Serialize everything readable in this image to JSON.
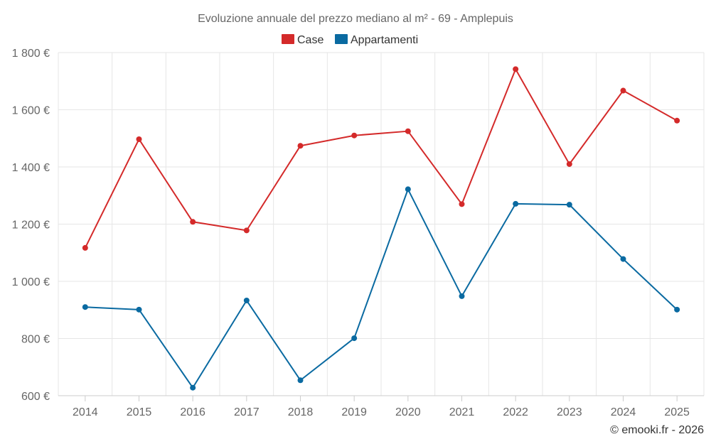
{
  "chart_data": {
    "type": "line",
    "title": "Evoluzione annuale del prezzo mediano al m² - 69 - Amplepuis",
    "categories": [
      "2014",
      "2015",
      "2016",
      "2017",
      "2018",
      "2019",
      "2020",
      "2021",
      "2022",
      "2023",
      "2024",
      "2025"
    ],
    "series": [
      {
        "name": "Case",
        "color": "#d42a2a",
        "values": [
          1117,
          1497,
          1208,
          1178,
          1474,
          1510,
          1525,
          1270,
          1742,
          1410,
          1667,
          1562
        ]
      },
      {
        "name": "Appartamenti",
        "color": "#0a6aa1",
        "values": [
          910,
          901,
          628,
          933,
          654,
          801,
          1322,
          948,
          1271,
          1268,
          1078,
          901
        ]
      }
    ],
    "ylim": [
      600,
      1800
    ],
    "yticks": [
      600,
      800,
      1000,
      1200,
      1400,
      1600,
      1800
    ],
    "ytick_labels": [
      "600 €",
      "800 €",
      "1 000 €",
      "1 200 €",
      "1 400 €",
      "1 600 €",
      "1 800 €"
    ],
    "xlabel": "",
    "ylabel": "",
    "grid": true,
    "legend": "top-center"
  },
  "credit": "© emooki.fr - 2026"
}
